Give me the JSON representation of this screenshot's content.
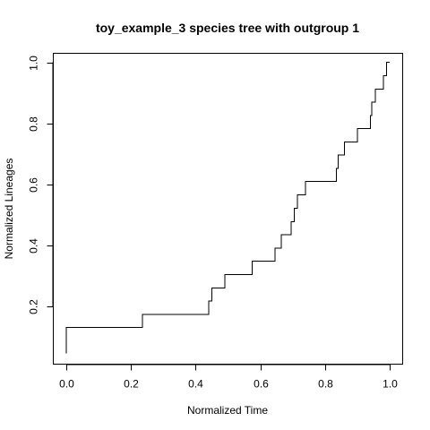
{
  "chart_data": {
    "type": "line",
    "title": "toy_example_3 species tree with outgroup 1",
    "xlabel": "Normalized Time",
    "ylabel": "Normalized Lineages",
    "xlim": [
      -0.04,
      1.04
    ],
    "ylim": [
      0.01,
      1.03
    ],
    "x_ticks": [
      0.0,
      0.2,
      0.4,
      0.6,
      0.8,
      1.0
    ],
    "x_tick_labels": [
      "0.0",
      "0.2",
      "0.4",
      "0.6",
      "0.8",
      "1.0"
    ],
    "y_ticks": [
      0.2,
      0.4,
      0.6,
      0.8,
      1.0
    ],
    "y_tick_labels": [
      "0.2",
      "0.4",
      "0.6",
      "0.8",
      "1.0"
    ],
    "series": [
      {
        "style": "step",
        "x": [
          0.0,
          0.0,
          0.235,
          0.44,
          0.45,
          0.49,
          0.575,
          0.645,
          0.665,
          0.695,
          0.705,
          0.715,
          0.74,
          0.835,
          0.84,
          0.86,
          0.9,
          0.94,
          0.945,
          0.955,
          0.98,
          0.99,
          1.0
        ],
        "y": [
          0.045,
          0.13,
          0.173,
          0.217,
          0.26,
          0.304,
          0.348,
          0.391,
          0.435,
          0.478,
          0.522,
          0.565,
          0.609,
          0.652,
          0.696,
          0.739,
          0.783,
          0.826,
          0.87,
          0.913,
          0.957,
          1.0,
          1.0
        ],
        "color": "#000000"
      }
    ],
    "grid": false,
    "legend": "none"
  }
}
